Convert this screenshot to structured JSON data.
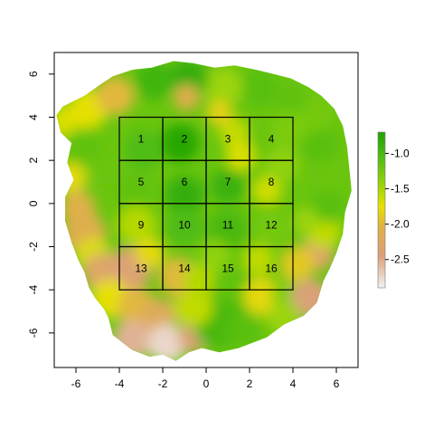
{
  "chart_data": {
    "type": "heatmap",
    "xlim": [
      -7,
      7
    ],
    "ylim": [
      -7.6,
      7
    ],
    "x_ticks": [
      -6,
      -4,
      -2,
      0,
      2,
      4,
      6
    ],
    "y_ticks": [
      -6,
      -4,
      -2,
      0,
      2,
      4,
      6
    ],
    "x_tick_labels": [
      "-6",
      "-4",
      "-2",
      "0",
      "2",
      "4",
      "6"
    ],
    "y_tick_labels": [
      "-6",
      "-4",
      "-2",
      "0",
      "2",
      "4",
      "6"
    ],
    "colorbar": {
      "range": [
        -2.9,
        -0.7
      ],
      "ticks": [
        -2.5,
        -2.0,
        -1.5,
        -1.0
      ],
      "tick_labels": [
        "-2.5",
        "-2.0",
        "-1.5",
        "-1.0"
      ],
      "stops": [
        {
          "value": -2.9,
          "color": "#f2f2f2"
        },
        {
          "value": -2.45,
          "color": "#dba07a"
        },
        {
          "value": -2.05,
          "color": "#e0b048"
        },
        {
          "value": -1.75,
          "color": "#e6e000"
        },
        {
          "value": -1.4,
          "color": "#8fd20a"
        },
        {
          "value": -1.05,
          "color": "#4fbc12"
        },
        {
          "value": -0.7,
          "color": "#1fa300"
        }
      ]
    },
    "grid_cells": [
      {
        "id": "1",
        "x0": -4,
        "x1": -2,
        "y0": 2,
        "y1": 4
      },
      {
        "id": "2",
        "x0": -2,
        "x1": 0,
        "y0": 2,
        "y1": 4
      },
      {
        "id": "3",
        "x0": 0,
        "x1": 2,
        "y0": 2,
        "y1": 4
      },
      {
        "id": "4",
        "x0": 2,
        "x1": 4,
        "y0": 2,
        "y1": 4
      },
      {
        "id": "5",
        "x0": -4,
        "x1": -2,
        "y0": 0,
        "y1": 2
      },
      {
        "id": "6",
        "x0": -2,
        "x1": 0,
        "y0": 0,
        "y1": 2
      },
      {
        "id": "7",
        "x0": 0,
        "x1": 2,
        "y0": 0,
        "y1": 2
      },
      {
        "id": "8",
        "x0": 2,
        "x1": 4,
        "y0": 0,
        "y1": 2
      },
      {
        "id": "9",
        "x0": -4,
        "x1": -2,
        "y0": -2,
        "y1": 0
      },
      {
        "id": "10",
        "x0": -2,
        "x1": 0,
        "y0": -2,
        "y1": 0
      },
      {
        "id": "11",
        "x0": 0,
        "x1": 2,
        "y0": -2,
        "y1": 0
      },
      {
        "id": "12",
        "x0": 2,
        "x1": 4,
        "y0": -2,
        "y1": 0
      },
      {
        "id": "13",
        "x0": -4,
        "x1": -2,
        "y0": -4,
        "y1": -2
      },
      {
        "id": "14",
        "x0": -2,
        "x1": 0,
        "y0": -4,
        "y1": -2
      },
      {
        "id": "15",
        "x0": 0,
        "x1": 2,
        "y0": -4,
        "y1": -2
      },
      {
        "id": "16",
        "x0": 2,
        "x1": 4,
        "y0": -4,
        "y1": -2
      }
    ],
    "surface_patches": [
      {
        "x": -6.4,
        "y": 3.8,
        "r": 0.8,
        "v": -1.7
      },
      {
        "x": -5.4,
        "y": 4.4,
        "r": 0.9,
        "v": -1.75
      },
      {
        "x": -4.2,
        "y": 5.0,
        "r": 0.9,
        "v": -2.0
      },
      {
        "x": -5.7,
        "y": 2.6,
        "r": 0.9,
        "v": -1.15
      },
      {
        "x": -6.2,
        "y": 1.2,
        "r": 0.7,
        "v": -1.8
      },
      {
        "x": -5.9,
        "y": -0.2,
        "r": 0.8,
        "v": -2.05
      },
      {
        "x": -5.6,
        "y": -1.4,
        "r": 1.0,
        "v": -2.1
      },
      {
        "x": -5.2,
        "y": -2.4,
        "r": 0.8,
        "v": -1.7
      },
      {
        "x": -4.8,
        "y": -3.2,
        "r": 0.9,
        "v": -2.3
      },
      {
        "x": -3.5,
        "y": -3.0,
        "r": 1.0,
        "v": -2.4
      },
      {
        "x": -4.4,
        "y": -4.4,
        "r": 0.9,
        "v": -1.75
      },
      {
        "x": -3.2,
        "y": -4.8,
        "r": 0.9,
        "v": -2.0
      },
      {
        "x": -2.2,
        "y": -5.2,
        "r": 0.8,
        "v": -2.2
      },
      {
        "x": -3.4,
        "y": -6.3,
        "r": 0.9,
        "v": -2.55
      },
      {
        "x": -1.8,
        "y": -6.5,
        "r": 0.9,
        "v": -2.75
      },
      {
        "x": -0.6,
        "y": -6.2,
        "r": 0.7,
        "v": -2.4
      },
      {
        "x": 0.6,
        "y": -5.4,
        "r": 1.3,
        "v": -1.0
      },
      {
        "x": 1.7,
        "y": -5.9,
        "r": 0.8,
        "v": -1.1
      },
      {
        "x": -0.6,
        "y": -4.8,
        "r": 0.9,
        "v": -1.6
      },
      {
        "x": -1.3,
        "y": -3.4,
        "r": 0.9,
        "v": -2.0
      },
      {
        "x": -0.3,
        "y": -3.6,
        "r": 0.8,
        "v": -1.55
      },
      {
        "x": 1.2,
        "y": -3.8,
        "r": 0.9,
        "v": -1.15
      },
      {
        "x": 2.6,
        "y": -4.3,
        "r": 0.9,
        "v": -1.8
      },
      {
        "x": 3.8,
        "y": -4.2,
        "r": 0.8,
        "v": -1.3
      },
      {
        "x": 4.8,
        "y": -4.4,
        "r": 0.9,
        "v": -2.45
      },
      {
        "x": 3.6,
        "y": -5.3,
        "r": 0.8,
        "v": -1.45
      },
      {
        "x": 5.1,
        "y": -2.3,
        "r": 0.8,
        "v": -2.3
      },
      {
        "x": 4.2,
        "y": -2.8,
        "r": 0.8,
        "v": -1.9
      },
      {
        "x": 5.4,
        "y": -1.3,
        "r": 0.8,
        "v": -1.6
      },
      {
        "x": 5.6,
        "y": -0.1,
        "r": 0.8,
        "v": -1.1
      },
      {
        "x": 5.6,
        "y": 1.4,
        "r": 0.9,
        "v": -1.2
      },
      {
        "x": 5.2,
        "y": 2.8,
        "r": 0.9,
        "v": -1.1
      },
      {
        "x": 5.0,
        "y": 4.2,
        "r": 0.9,
        "v": -1.25
      },
      {
        "x": 3.9,
        "y": 4.9,
        "r": 0.8,
        "v": -1.15
      },
      {
        "x": 3.8,
        "y": 3.4,
        "r": 0.8,
        "v": -1.3
      },
      {
        "x": 2.4,
        "y": 5.4,
        "r": 0.9,
        "v": -1.1
      },
      {
        "x": 0.8,
        "y": 5.4,
        "r": 0.9,
        "v": -1.45
      },
      {
        "x": -0.8,
        "y": 5.8,
        "r": 0.9,
        "v": -0.85
      },
      {
        "x": -2.4,
        "y": 5.7,
        "r": 0.9,
        "v": -0.95
      },
      {
        "x": -0.9,
        "y": 4.9,
        "r": 0.6,
        "v": -2.1
      },
      {
        "x": 1.3,
        "y": 3.3,
        "r": 0.7,
        "v": -1.6
      },
      {
        "x": 1.6,
        "y": 2.2,
        "r": 0.7,
        "v": -1.7
      },
      {
        "x": 0.6,
        "y": 4.2,
        "r": 0.6,
        "v": -1.85
      },
      {
        "x": -1.2,
        "y": 2.8,
        "r": 0.9,
        "v": -0.75
      },
      {
        "x": -2.9,
        "y": 2.5,
        "r": 0.9,
        "v": -1.05
      },
      {
        "x": -3.2,
        "y": 0.6,
        "r": 0.9,
        "v": -1.15
      },
      {
        "x": -1.0,
        "y": 0.4,
        "r": 0.9,
        "v": -0.85
      },
      {
        "x": 1.0,
        "y": 0.8,
        "r": 0.8,
        "v": -0.9
      },
      {
        "x": 2.8,
        "y": 0.6,
        "r": 0.7,
        "v": -1.65
      },
      {
        "x": 3.5,
        "y": 1.8,
        "r": 0.8,
        "v": -1.4
      },
      {
        "x": -3.2,
        "y": -1.0,
        "r": 0.9,
        "v": -1.55
      },
      {
        "x": -1.0,
        "y": -1.1,
        "r": 0.9,
        "v": -1.05
      },
      {
        "x": 1.0,
        "y": -1.2,
        "r": 0.9,
        "v": -1.0
      },
      {
        "x": 3.0,
        "y": -1.2,
        "r": 0.8,
        "v": -1.25
      },
      {
        "x": -2.6,
        "y": -2.3,
        "r": 0.7,
        "v": -1.8
      },
      {
        "x": 0.4,
        "y": -2.4,
        "r": 0.7,
        "v": -1.4
      },
      {
        "x": 2.4,
        "y": -2.6,
        "r": 0.7,
        "v": -1.6
      },
      {
        "x": -4.6,
        "y": 1.6,
        "r": 0.7,
        "v": -1.2
      },
      {
        "x": 4.6,
        "y": -0.8,
        "r": 0.6,
        "v": -1.45
      }
    ]
  }
}
